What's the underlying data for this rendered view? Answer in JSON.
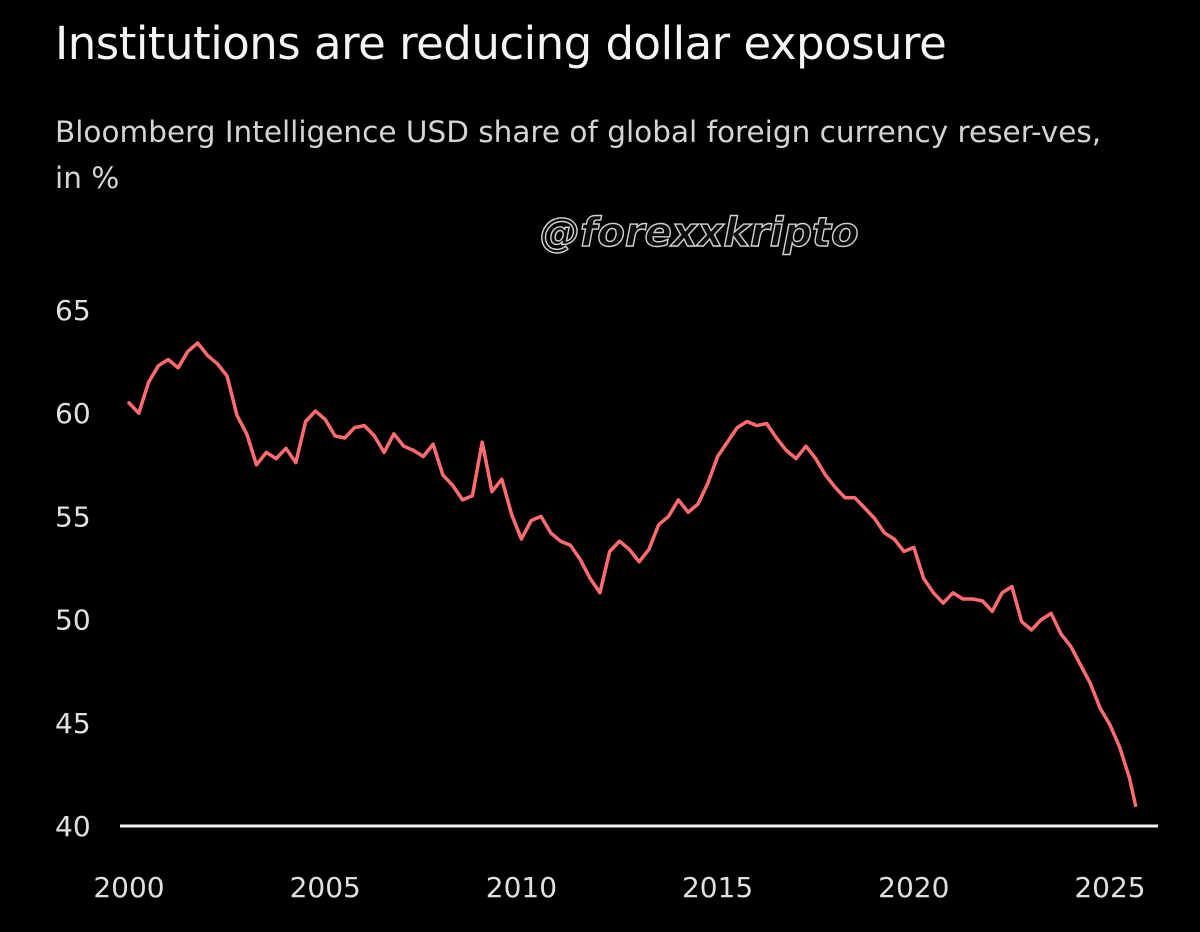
{
  "watermark": "@forexxkripto",
  "colors": {
    "background": "#000000",
    "line": "#ff6b70",
    "axis": "#f2f2f2",
    "text": "#e6e6e6"
  },
  "chart_data": {
    "type": "line",
    "title": "Institutions are reducing dollar exposure",
    "subtitle": "Bloomberg Intelligence USD share of global foreign currency reser-ves, in %",
    "xlabel": "",
    "ylabel": "",
    "xlim": [
      2000,
      2025.7
    ],
    "ylim": [
      40,
      65
    ],
    "x_ticks": [
      2000,
      2005,
      2010,
      2015,
      2020,
      2025
    ],
    "y_ticks": [
      40,
      45,
      50,
      55,
      60,
      65
    ],
    "grid": false,
    "legend": "none",
    "series": [
      {
        "x": [
          2000.0,
          2000.25,
          2000.5,
          2000.75,
          2001.0,
          2001.25,
          2001.5,
          2001.75,
          2002.0,
          2002.25,
          2002.5,
          2002.75,
          2003.0,
          2003.25,
          2003.5,
          2003.75,
          2004.0,
          2004.25,
          2004.5,
          2004.75,
          2005.0,
          2005.25,
          2005.5,
          2005.75,
          2006.0,
          2006.25,
          2006.5,
          2006.75,
          2007.0,
          2007.25,
          2007.5,
          2007.75,
          2008.0,
          2008.25,
          2008.5,
          2008.75,
          2009.0,
          2009.25,
          2009.5,
          2009.75,
          2010.0,
          2010.25,
          2010.5,
          2010.75,
          2011.0,
          2011.25,
          2011.5,
          2011.75,
          2012.0,
          2012.25,
          2012.5,
          2012.75,
          2013.0,
          2013.25,
          2013.5,
          2013.75,
          2014.0,
          2014.25,
          2014.5,
          2014.75,
          2015.0,
          2015.25,
          2015.5,
          2015.75,
          2016.0,
          2016.25,
          2016.5,
          2016.75,
          2017.0,
          2017.25,
          2017.5,
          2017.75,
          2018.0,
          2018.25,
          2018.5,
          2018.75,
          2019.0,
          2019.25,
          2019.5,
          2019.75,
          2020.0,
          2020.25,
          2020.5,
          2020.75,
          2021.0,
          2021.25,
          2021.5,
          2021.75,
          2022.0,
          2022.25,
          2022.5,
          2022.75,
          2023.0,
          2023.25,
          2023.5,
          2023.75,
          2024.0,
          2024.25,
          2024.5,
          2024.75,
          2025.0,
          2025.25,
          2025.5,
          2025.65
        ],
        "values": [
          60.5,
          60.0,
          61.5,
          62.3,
          62.6,
          62.2,
          63.0,
          63.4,
          62.8,
          62.4,
          61.8,
          59.9,
          59.0,
          57.5,
          58.1,
          57.8,
          58.3,
          57.6,
          59.6,
          60.1,
          59.7,
          58.9,
          58.8,
          59.3,
          59.4,
          58.9,
          58.1,
          59.0,
          58.4,
          58.2,
          57.9,
          58.5,
          57.0,
          56.5,
          55.8,
          56.0,
          58.6,
          56.2,
          56.8,
          55.1,
          53.9,
          54.8,
          55.0,
          54.2,
          53.8,
          53.6,
          52.9,
          52.0,
          51.3,
          53.3,
          53.8,
          53.4,
          52.8,
          53.4,
          54.6,
          55.0,
          55.8,
          55.2,
          55.6,
          56.6,
          57.9,
          58.6,
          59.3,
          59.6,
          59.4,
          59.5,
          58.8,
          58.2,
          57.8,
          58.4,
          57.8,
          57.0,
          56.4,
          55.9,
          55.9,
          55.4,
          54.9,
          54.2,
          53.9,
          53.3,
          53.5,
          52.0,
          51.3,
          50.8,
          51.3,
          51.0,
          51.0,
          50.9,
          50.4,
          51.3,
          51.6,
          49.9,
          49.5,
          50.0,
          50.3,
          49.3,
          48.7,
          47.8,
          46.9,
          45.7,
          44.9,
          43.8,
          42.3,
          41.0
        ]
      }
    ]
  }
}
